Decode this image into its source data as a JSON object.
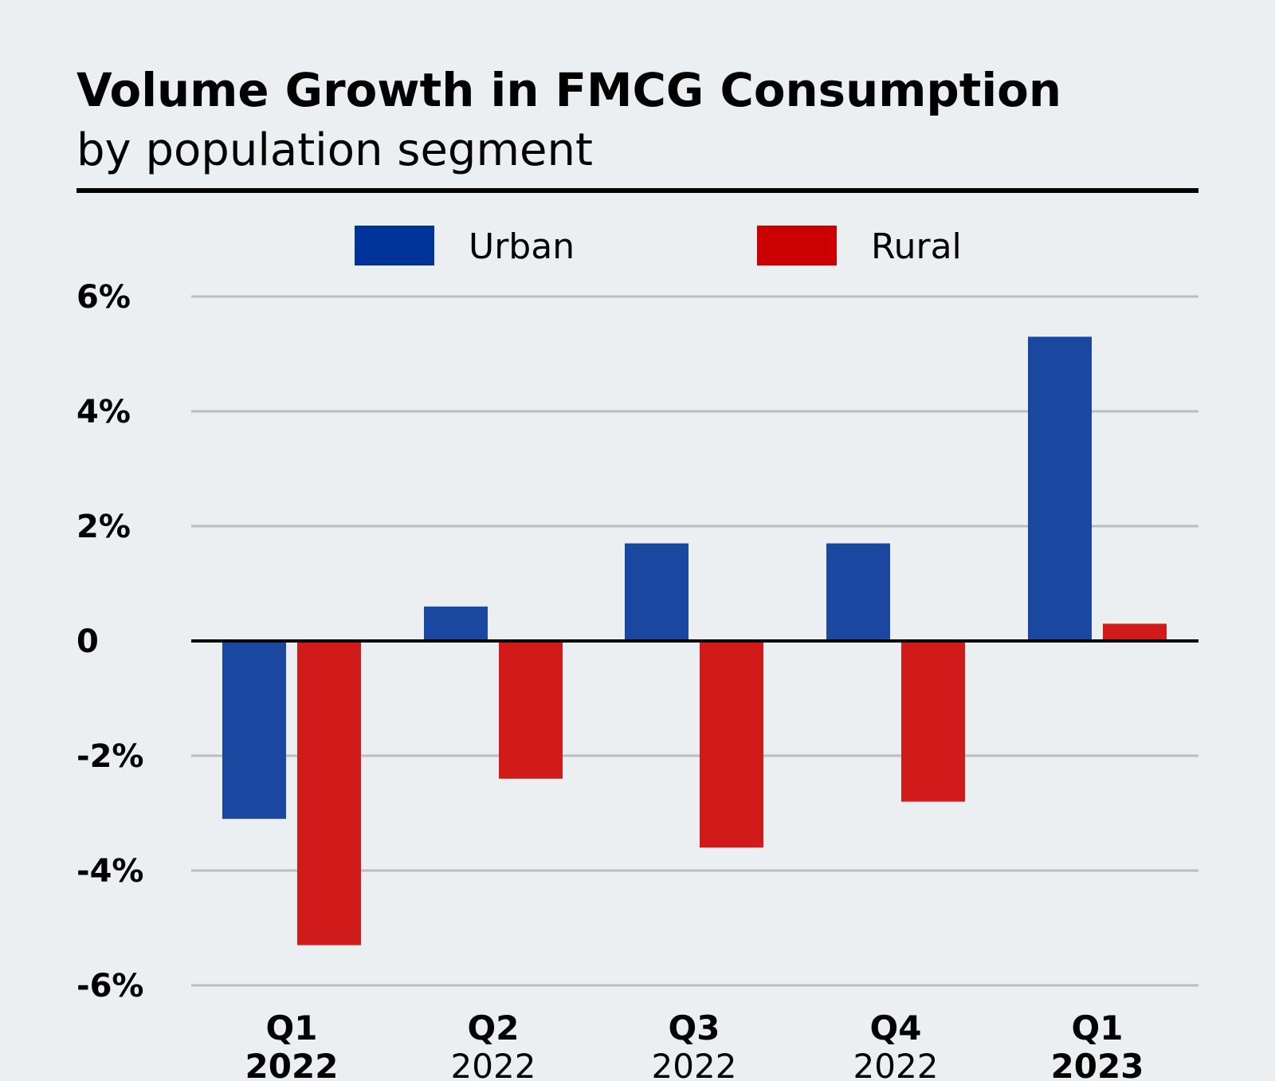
{
  "chart_data": {
    "type": "bar",
    "title": "Volume Growth in FMCG Consumption",
    "subtitle": "by population segment",
    "categories": [
      {
        "quarter": "Q1",
        "year": "2022",
        "year_bold": true
      },
      {
        "quarter": "Q2",
        "year": "2022",
        "year_bold": false
      },
      {
        "quarter": "Q3",
        "year": "2022",
        "year_bold": false
      },
      {
        "quarter": "Q4",
        "year": "2022",
        "year_bold": false
      },
      {
        "quarter": "Q1",
        "year": "2023",
        "year_bold": true
      }
    ],
    "series": [
      {
        "name": "Urban",
        "color": "#1a47a0",
        "legend_color": "#003399",
        "values": [
          -3.1,
          0.6,
          1.7,
          1.7,
          5.3
        ]
      },
      {
        "name": "Rural",
        "color": "#d11a1a",
        "legend_color": "#cc0000",
        "values": [
          -5.3,
          -2.4,
          -3.6,
          -2.8,
          0.3
        ]
      }
    ],
    "ylim": [
      -6,
      6
    ],
    "yticks": [
      {
        "value": 6,
        "label": "6%"
      },
      {
        "value": 4,
        "label": "4%"
      },
      {
        "value": 2,
        "label": "2%"
      },
      {
        "value": 0,
        "label": "0"
      },
      {
        "value": -2,
        "label": "-2%"
      },
      {
        "value": -4,
        "label": "-4%"
      },
      {
        "value": -6,
        "label": "-6%"
      }
    ],
    "grid": true,
    "legend_position": "top-center",
    "colors": {
      "background": "#eceff2",
      "grid": "#b9bcc0",
      "zero_line": "#000000",
      "rule": "#000000"
    }
  }
}
